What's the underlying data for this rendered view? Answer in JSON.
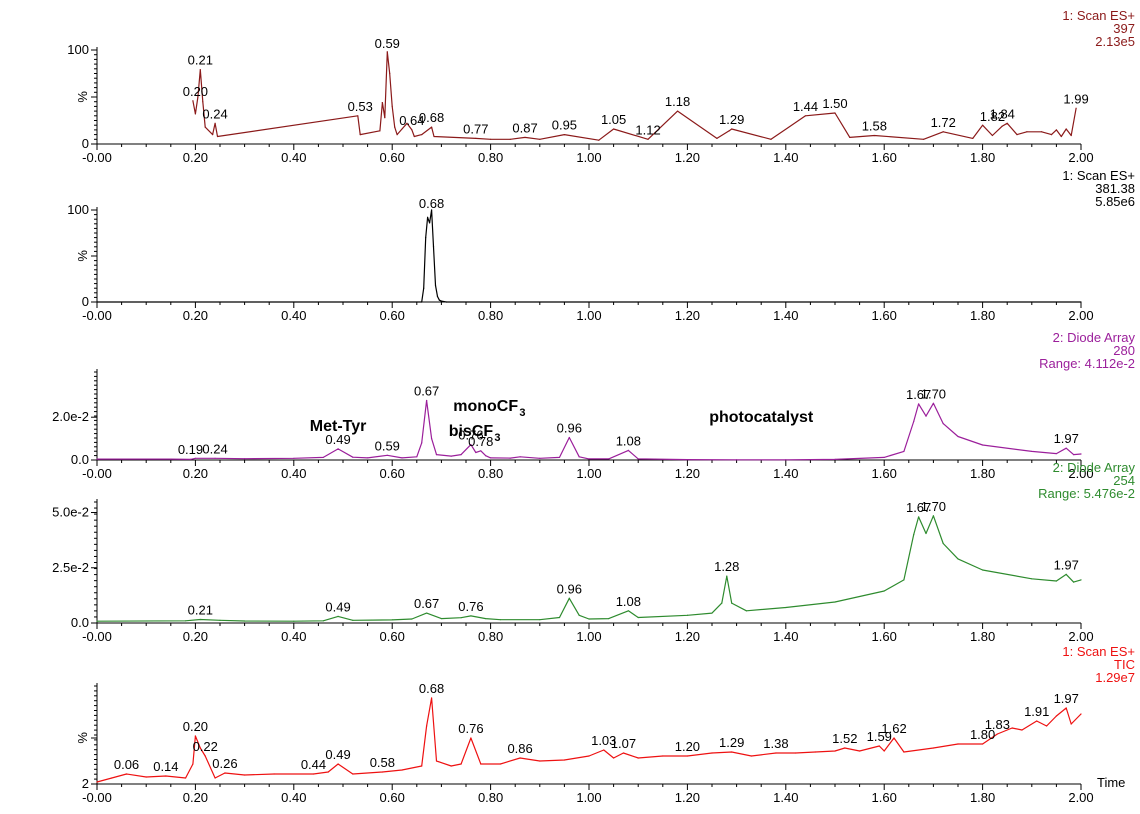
{
  "chart_data": [
    {
      "type": "line",
      "color": "#8b1a1a",
      "header": [
        "1: Scan ES+",
        "397",
        "2.13e5"
      ],
      "yticks": [
        "100",
        "%",
        "0"
      ],
      "ylim": [
        0,
        100
      ],
      "xlim": [
        0,
        2
      ],
      "xticks": [
        "-0.00",
        "0.20",
        "0.40",
        "0.60",
        "0.80",
        "1.00",
        "1.20",
        "1.40",
        "1.60",
        "1.80",
        "2.00"
      ],
      "series": [
        {
          "x": [
            0.195,
            0.2,
            0.205,
            0.21,
            0.215,
            0.22,
            0.235,
            0.24,
            0.245,
            0.53,
            0.535,
            0.575,
            0.58,
            0.585,
            0.59,
            0.595,
            0.6,
            0.605,
            0.61,
            0.62,
            0.63,
            0.64,
            0.645,
            0.66,
            0.68,
            0.685,
            0.77,
            0.8,
            0.84,
            0.87,
            0.9,
            0.95,
            1.02,
            1.05,
            1.12,
            1.18,
            1.26,
            1.285,
            1.29,
            1.37,
            1.44,
            1.5,
            1.53,
            1.58,
            1.68,
            1.72,
            1.78,
            1.8,
            1.82,
            1.84,
            1.85,
            1.87,
            1.89,
            1.92,
            1.94,
            1.95,
            1.96,
            1.97,
            1.98,
            1.99
          ],
          "y": [
            46,
            32,
            50,
            79,
            45,
            18,
            10,
            22,
            8,
            30,
            10,
            14,
            44,
            28,
            98,
            75,
            40,
            18,
            10,
            16,
            22,
            15,
            8,
            10,
            18,
            8,
            6,
            5,
            5,
            7,
            5,
            10,
            4,
            16,
            5,
            35,
            6,
            14,
            16,
            5,
            30,
            33,
            7,
            9,
            5,
            13,
            6,
            20,
            9,
            19,
            22,
            10,
            13,
            13,
            10,
            15,
            8,
            16,
            9,
            38
          ]
        }
      ],
      "labels": [
        {
          "x": 0.2,
          "y": 46,
          "text": "0.20"
        },
        {
          "x": 0.21,
          "y": 79,
          "text": "0.21"
        },
        {
          "x": 0.24,
          "y": 22,
          "text": "0.24"
        },
        {
          "x": 0.535,
          "y": 30,
          "text": "0.53"
        },
        {
          "x": 0.59,
          "y": 98,
          "text": "0.59"
        },
        {
          "x": 0.64,
          "y": 15,
          "text": "0.64"
        },
        {
          "x": 0.68,
          "y": 18,
          "text": "0.68"
        },
        {
          "x": 0.77,
          "y": 6,
          "text": "0.77"
        },
        {
          "x": 0.87,
          "y": 7,
          "text": "0.87"
        },
        {
          "x": 0.95,
          "y": 10,
          "text": "0.95"
        },
        {
          "x": 1.05,
          "y": 16,
          "text": "1.05"
        },
        {
          "x": 1.12,
          "y": 5,
          "text": "1.12"
        },
        {
          "x": 1.18,
          "y": 35,
          "text": "1.18"
        },
        {
          "x": 1.29,
          "y": 16,
          "text": "1.29"
        },
        {
          "x": 1.44,
          "y": 30,
          "text": "1.44"
        },
        {
          "x": 1.5,
          "y": 33,
          "text": "1.50"
        },
        {
          "x": 1.58,
          "y": 9,
          "text": "1.58"
        },
        {
          "x": 1.72,
          "y": 13,
          "text": "1.72"
        },
        {
          "x": 1.82,
          "y": 19,
          "text": "1.82"
        },
        {
          "x": 1.84,
          "y": 22,
          "text": "1.84"
        },
        {
          "x": 1.99,
          "y": 38,
          "text": "1.99"
        }
      ]
    },
    {
      "type": "line",
      "color": "#000000",
      "header": [
        "1: Scan ES+",
        "381.38",
        "5.85e6"
      ],
      "yticks": [
        "100",
        "%",
        "0"
      ],
      "ylim": [
        0,
        100
      ],
      "xlim": [
        0,
        2
      ],
      "xticks": [
        "-0.00",
        "0.20",
        "0.40",
        "0.60",
        "0.80",
        "1.00",
        "1.20",
        "1.40",
        "1.60",
        "1.80",
        "2.00"
      ],
      "series": [
        {
          "x": [
            0,
            0.66,
            0.664,
            0.668,
            0.672,
            0.676,
            0.68,
            0.684,
            0.688,
            0.692,
            0.696,
            0.7,
            0.71,
            2.0
          ],
          "y": [
            0,
            0,
            15,
            70,
            92,
            86,
            100,
            60,
            18,
            6,
            2,
            1,
            0,
            0
          ]
        }
      ],
      "labels": [
        {
          "x": 0.68,
          "y": 100,
          "text": "0.68"
        }
      ]
    },
    {
      "type": "line",
      "color": "#9b1f9b",
      "header": [
        "2: Diode Array",
        "280",
        "Range: 4.112e-2"
      ],
      "yticks": [
        "2.0e-2",
        "0.0"
      ],
      "ylim": [
        0,
        0.04112
      ],
      "xlim": [
        0,
        2
      ],
      "xticks": [
        "-0.00",
        "0.20",
        "0.40",
        "0.60",
        "0.80",
        "1.00",
        "1.20",
        "1.40",
        "1.60",
        "1.80",
        "2.00"
      ],
      "series": [
        {
          "x": [
            0,
            0.15,
            0.19,
            0.2,
            0.24,
            0.3,
            0.4,
            0.46,
            0.49,
            0.52,
            0.55,
            0.59,
            0.62,
            0.65,
            0.66,
            0.67,
            0.68,
            0.69,
            0.72,
            0.74,
            0.76,
            0.77,
            0.78,
            0.79,
            0.8,
            0.84,
            0.86,
            0.9,
            0.94,
            0.96,
            0.98,
            1.0,
            1.04,
            1.08,
            1.1,
            1.2,
            1.3,
            1.4,
            1.5,
            1.6,
            1.64,
            1.66,
            1.67,
            1.685,
            1.7,
            1.72,
            1.75,
            1.8,
            1.9,
            1.95,
            1.97,
            1.985,
            2.0
          ],
          "y": [
            0.0004,
            0.0004,
            0.0003,
            0.0008,
            0.0008,
            0.0006,
            0.0008,
            0.0012,
            0.0052,
            0.0013,
            0.001,
            0.0022,
            0.001,
            0.0015,
            0.008,
            0.0278,
            0.01,
            0.0025,
            0.0018,
            0.0025,
            0.0072,
            0.0035,
            0.0043,
            0.002,
            0.001,
            0.0009,
            0.0015,
            0.0008,
            0.0012,
            0.0105,
            0.0015,
            0.0005,
            0.0005,
            0.0045,
            0.0005,
            0.0002,
            0.0001,
            0.0001,
            0.0003,
            0.0012,
            0.004,
            0.018,
            0.0262,
            0.0205,
            0.0265,
            0.017,
            0.011,
            0.007,
            0.004,
            0.003,
            0.0055,
            0.0025,
            0.0028
          ]
        }
      ],
      "labels": [
        {
          "x": 0.19,
          "y": 0.0003,
          "text": "0.19"
        },
        {
          "x": 0.24,
          "y": 0.0008,
          "text": "0.24"
        },
        {
          "x": 0.49,
          "y": 0.0052,
          "text": "0.49"
        },
        {
          "x": 0.59,
          "y": 0.0022,
          "text": "0.59"
        },
        {
          "x": 0.67,
          "y": 0.0278,
          "text": "0.67"
        },
        {
          "x": 0.76,
          "y": 0.0072,
          "text": "0.76"
        },
        {
          "x": 0.78,
          "y": 0.0043,
          "text": "0.78"
        },
        {
          "x": 0.96,
          "y": 0.0105,
          "text": "0.96"
        },
        {
          "x": 1.08,
          "y": 0.0045,
          "text": "1.08"
        },
        {
          "x": 1.67,
          "y": 0.0262,
          "text": "1.67"
        },
        {
          "x": 1.7,
          "y": 0.0265,
          "text": "1.70"
        },
        {
          "x": 1.97,
          "y": 0.0055,
          "text": "1.97"
        }
      ],
      "annotations": [
        {
          "x": 0.49,
          "y": 0.0135,
          "text": "Met-Tyr"
        },
        {
          "x": 0.79,
          "y": 0.0228,
          "text": "monoCF",
          "sub": "3"
        },
        {
          "x": 0.76,
          "y": 0.0112,
          "text": "bisCF",
          "sub": "3"
        },
        {
          "x": 1.35,
          "y": 0.0178,
          "text": "photocatalyst"
        }
      ]
    },
    {
      "type": "line",
      "color": "#2e8b2e",
      "header": [
        "2: Diode Array",
        "254",
        "Range: 5.476e-2"
      ],
      "yticks": [
        "5.0e-2",
        "2.5e-2",
        "0.0"
      ],
      "ylim": [
        0,
        0.05476
      ],
      "xlim": [
        0,
        2
      ],
      "xticks": [
        "-0.00",
        "0.20",
        "0.40",
        "0.60",
        "0.80",
        "1.00",
        "1.20",
        "1.40",
        "1.60",
        "1.80",
        "2.00"
      ],
      "series": [
        {
          "x": [
            0,
            0.18,
            0.21,
            0.25,
            0.3,
            0.4,
            0.46,
            0.49,
            0.52,
            0.6,
            0.64,
            0.67,
            0.7,
            0.74,
            0.76,
            0.79,
            0.82,
            0.9,
            0.94,
            0.96,
            0.98,
            1.0,
            1.04,
            1.08,
            1.1,
            1.2,
            1.25,
            1.27,
            1.28,
            1.29,
            1.32,
            1.4,
            1.5,
            1.6,
            1.64,
            1.66,
            1.67,
            1.685,
            1.7,
            1.72,
            1.75,
            1.8,
            1.9,
            1.95,
            1.97,
            1.985,
            2.0
          ],
          "y": [
            0.0008,
            0.001,
            0.0016,
            0.0012,
            0.0009,
            0.0008,
            0.001,
            0.003,
            0.0012,
            0.0014,
            0.0018,
            0.0045,
            0.002,
            0.0024,
            0.0032,
            0.002,
            0.0015,
            0.0015,
            0.0025,
            0.0112,
            0.0035,
            0.0018,
            0.002,
            0.0055,
            0.0025,
            0.0035,
            0.0045,
            0.009,
            0.0212,
            0.009,
            0.0055,
            0.007,
            0.0095,
            0.0145,
            0.0195,
            0.04,
            0.048,
            0.0405,
            0.0485,
            0.036,
            0.029,
            0.024,
            0.02,
            0.019,
            0.022,
            0.0185,
            0.0195
          ]
        }
      ],
      "labels": [
        {
          "x": 0.21,
          "y": 0.0016,
          "text": "0.21"
        },
        {
          "x": 0.49,
          "y": 0.003,
          "text": "0.49"
        },
        {
          "x": 0.67,
          "y": 0.0045,
          "text": "0.67"
        },
        {
          "x": 0.76,
          "y": 0.0032,
          "text": "0.76"
        },
        {
          "x": 0.96,
          "y": 0.0112,
          "text": "0.96"
        },
        {
          "x": 1.08,
          "y": 0.0055,
          "text": "1.08"
        },
        {
          "x": 1.28,
          "y": 0.0212,
          "text": "1.28"
        },
        {
          "x": 1.67,
          "y": 0.048,
          "text": "1.67"
        },
        {
          "x": 1.7,
          "y": 0.0485,
          "text": "1.70"
        },
        {
          "x": 1.97,
          "y": 0.022,
          "text": "1.97"
        }
      ]
    },
    {
      "type": "line",
      "color": "#ee1111",
      "header": [
        "1: Scan ES+",
        "TIC",
        "1.29e7"
      ],
      "yticks": [
        "%",
        "2"
      ],
      "ylim": [
        2,
        100
      ],
      "xlim": [
        0,
        2
      ],
      "xticks": [
        "-0.00",
        "0.20",
        "0.40",
        "0.60",
        "0.80",
        "1.00",
        "1.20",
        "1.40",
        "1.60",
        "1.80",
        "2.00"
      ],
      "xlabel": "Time",
      "series": [
        {
          "x": [
            0,
            0.03,
            0.06,
            0.1,
            0.14,
            0.18,
            0.195,
            0.2,
            0.21,
            0.22,
            0.24,
            0.26,
            0.3,
            0.36,
            0.44,
            0.47,
            0.49,
            0.52,
            0.58,
            0.62,
            0.66,
            0.67,
            0.68,
            0.69,
            0.72,
            0.74,
            0.76,
            0.78,
            0.82,
            0.86,
            0.9,
            0.95,
            1.0,
            1.03,
            1.05,
            1.07,
            1.1,
            1.15,
            1.2,
            1.25,
            1.29,
            1.33,
            1.38,
            1.42,
            1.46,
            1.5,
            1.52,
            1.55,
            1.59,
            1.6,
            1.62,
            1.64,
            1.7,
            1.75,
            1.8,
            1.83,
            1.86,
            1.88,
            1.91,
            1.93,
            1.95,
            1.97,
            1.98,
            2.0
          ],
          "y": [
            4,
            8,
            12,
            9,
            10,
            8,
            22,
            50,
            38,
            30,
            8,
            13,
            11,
            12,
            12,
            14,
            22,
            12,
            14,
            16,
            20,
            60,
            88,
            25,
            20,
            22,
            48,
            22,
            22,
            28,
            25,
            26,
            30,
            36,
            28,
            33,
            28,
            30,
            30,
            33,
            34,
            30,
            33,
            33,
            34,
            35,
            38,
            35,
            40,
            35,
            48,
            34,
            38,
            42,
            42,
            52,
            58,
            56,
            65,
            60,
            70,
            78,
            62,
            72
          ]
        }
      ],
      "labels": [
        {
          "x": 0.06,
          "y": 12,
          "text": "0.06"
        },
        {
          "x": 0.14,
          "y": 10,
          "text": "0.14"
        },
        {
          "x": 0.2,
          "y": 50,
          "text": "0.20"
        },
        {
          "x": 0.22,
          "y": 30,
          "text": "0.22"
        },
        {
          "x": 0.26,
          "y": 13,
          "text": "0.26"
        },
        {
          "x": 0.44,
          "y": 12,
          "text": "0.44"
        },
        {
          "x": 0.49,
          "y": 22,
          "text": "0.49"
        },
        {
          "x": 0.58,
          "y": 14,
          "text": "0.58"
        },
        {
          "x": 0.68,
          "y": 88,
          "text": "0.68"
        },
        {
          "x": 0.76,
          "y": 48,
          "text": "0.76"
        },
        {
          "x": 0.86,
          "y": 28,
          "text": "0.86"
        },
        {
          "x": 1.03,
          "y": 36,
          "text": "1.03"
        },
        {
          "x": 1.07,
          "y": 33,
          "text": "1.07"
        },
        {
          "x": 1.2,
          "y": 30,
          "text": "1.20"
        },
        {
          "x": 1.29,
          "y": 34,
          "text": "1.29"
        },
        {
          "x": 1.38,
          "y": 33,
          "text": "1.38"
        },
        {
          "x": 1.52,
          "y": 38,
          "text": "1.52"
        },
        {
          "x": 1.59,
          "y": 40,
          "text": "1.59"
        },
        {
          "x": 1.62,
          "y": 48,
          "text": "1.62"
        },
        {
          "x": 1.8,
          "y": 42,
          "text": "1.80"
        },
        {
          "x": 1.83,
          "y": 52,
          "text": "1.83"
        },
        {
          "x": 1.91,
          "y": 65,
          "text": "1.91"
        },
        {
          "x": 1.97,
          "y": 78,
          "text": "1.97"
        }
      ]
    }
  ]
}
